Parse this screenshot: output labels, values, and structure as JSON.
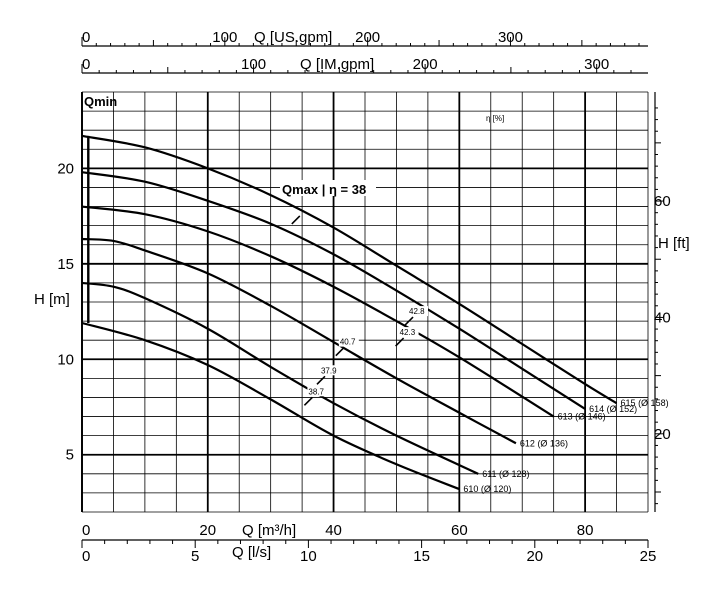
{
  "chart_data": {
    "type": "line",
    "x": {
      "label": "Q [m³/h]",
      "range": [
        0,
        90
      ],
      "ticks": [
        0,
        20,
        40,
        60,
        80
      ]
    },
    "x2": {
      "label": "Q [l/s]",
      "range": [
        0,
        25
      ],
      "ticks": [
        0,
        5,
        10,
        15,
        20,
        25
      ]
    },
    "x_top_us": {
      "label": "Q [US.gpm]",
      "ticks": [
        0,
        100,
        200,
        300
      ]
    },
    "x_top_im": {
      "label": "Q [IM.gpm]",
      "ticks": [
        0,
        100,
        200,
        300
      ]
    },
    "y": {
      "label": "H [m]",
      "range": [
        2,
        24
      ],
      "ticks": [
        5,
        10,
        15,
        20
      ]
    },
    "y2": {
      "label": "H [ft]",
      "ticks": [
        20,
        40,
        60
      ]
    },
    "grid": true,
    "series": [
      {
        "name": "610 (Ø 120)",
        "x": [
          0,
          10,
          20,
          30,
          40,
          50,
          60
        ],
        "y": [
          11.9,
          11.0,
          9.7,
          7.9,
          6.0,
          4.5,
          3.2
        ]
      },
      {
        "name": "611 (Ø 128)",
        "x": [
          0,
          5,
          10,
          20,
          30,
          40,
          50,
          63
        ],
        "y": [
          14.0,
          13.8,
          13.2,
          11.6,
          9.6,
          7.7,
          6.0,
          4.0
        ]
      },
      {
        "name": "612 (Ø 136)",
        "x": [
          0,
          5,
          10,
          20,
          30,
          40,
          50,
          60,
          69
        ],
        "y": [
          16.3,
          16.2,
          15.7,
          14.5,
          12.8,
          10.9,
          9.0,
          7.2,
          5.6
        ]
      },
      {
        "name": "613 (Ø 146)",
        "x": [
          0,
          10,
          20,
          30,
          40,
          50,
          60,
          75
        ],
        "y": [
          18.0,
          17.6,
          16.7,
          15.4,
          13.8,
          12.0,
          10.1,
          7.0
        ]
      },
      {
        "name": "614 (Ø 152)",
        "x": [
          0,
          10,
          20,
          30,
          40,
          50,
          60,
          70,
          80
        ],
        "y": [
          19.8,
          19.3,
          18.3,
          17.1,
          15.5,
          13.6,
          11.6,
          9.5,
          7.4
        ]
      },
      {
        "name": "615 (Ø 158)",
        "x": [
          0,
          10,
          20,
          30,
          40,
          50,
          60,
          70,
          80,
          85
        ],
        "y": [
          21.7,
          21.1,
          20.0,
          18.6,
          16.9,
          14.9,
          12.9,
          10.8,
          8.7,
          7.7
        ]
      }
    ],
    "qmin": {
      "label": "Qmin",
      "x": 1
    },
    "qmax": {
      "label": "Qmax | η = 38",
      "points": [
        {
          "label": "38.7",
          "x": 36,
          "y": 7.8
        },
        {
          "label": "37.9",
          "x": 38,
          "y": 8.9
        },
        {
          "label": "40.7",
          "x": 41,
          "y": 10.4
        },
        {
          "label": "42.3",
          "x": 50.5,
          "y": 10.9
        },
        {
          "label": "42.8",
          "x": 52,
          "y": 12.0
        },
        {
          "label": "",
          "x": 34,
          "y": 17.3
        }
      ]
    },
    "annotations": [
      {
        "text": "η [%]"
      }
    ]
  }
}
